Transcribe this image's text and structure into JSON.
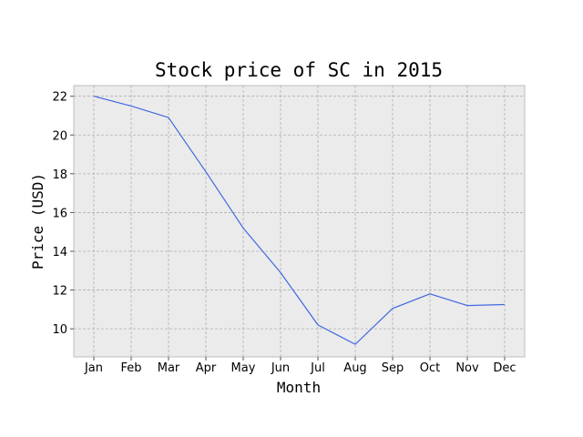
{
  "chart_data": {
    "type": "line",
    "title": "Stock price of SC in 2015",
    "xlabel": "Month",
    "ylabel": "Price (USD)",
    "categories": [
      "Jan",
      "Feb",
      "Mar",
      "Apr",
      "May",
      "Jun",
      "Jul",
      "Aug",
      "Sep",
      "Oct",
      "Nov",
      "Dec"
    ],
    "series": [
      {
        "values": [
          22.0,
          21.5,
          20.9,
          18.1,
          15.2,
          12.9,
          10.2,
          9.2,
          11.05,
          11.8,
          11.2,
          11.25
        ]
      }
    ],
    "ylim": [
      8.55,
      22.55
    ],
    "yticks": [
      10,
      12,
      14,
      16,
      18,
      20,
      22
    ],
    "grid": true,
    "line_color": "#4169e1",
    "plot_background": "#ebebeb"
  }
}
